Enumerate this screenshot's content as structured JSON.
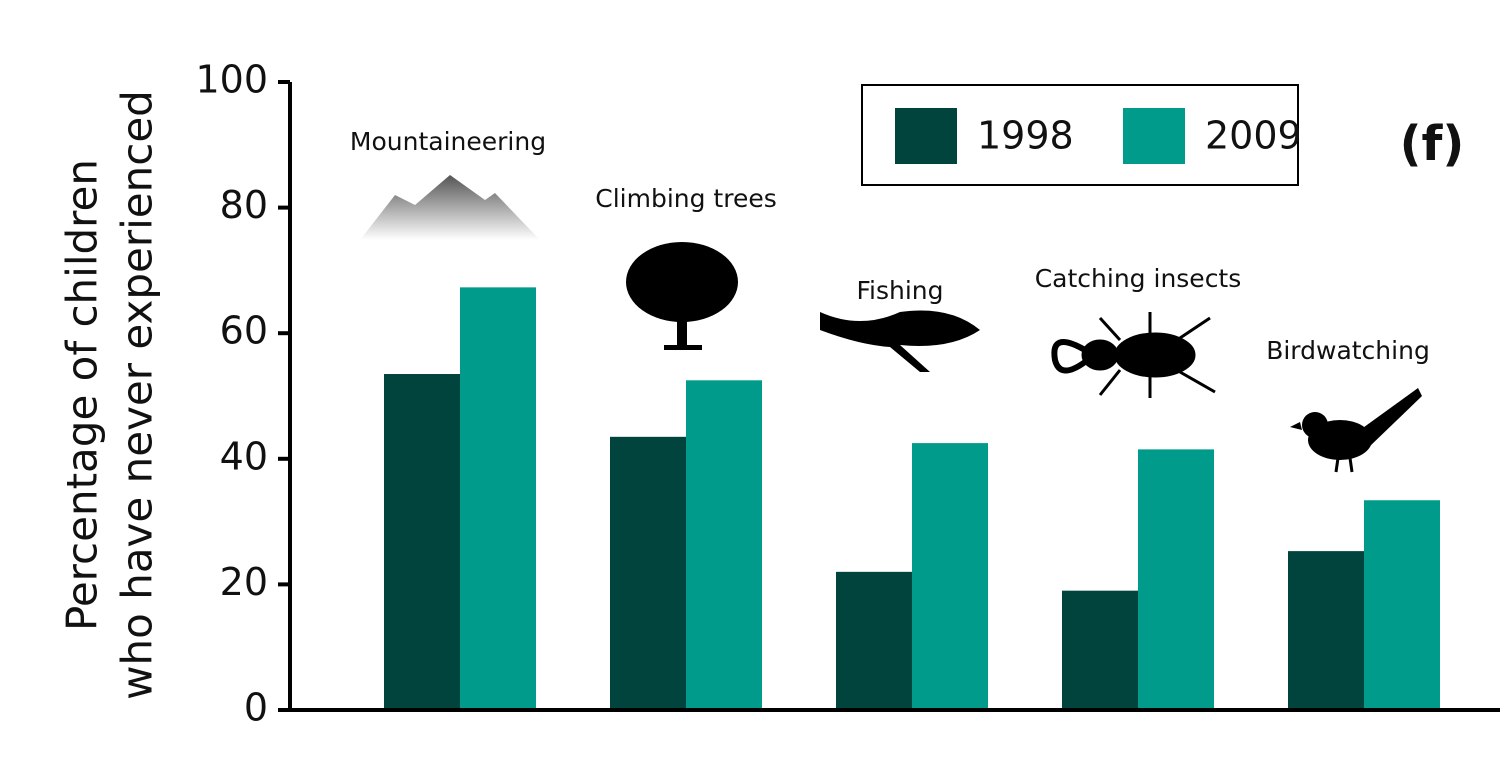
{
  "chart_data": {
    "type": "bar",
    "y_label": [
      "Percentage of children",
      "who have never experienced"
    ],
    "panel_label": "(f)",
    "categories": [
      "Mountaineering",
      "Climbing trees",
      "Fishing",
      "Catching insects",
      "Birdwatching"
    ],
    "series": [
      {
        "name": "1998",
        "color": "#01443d",
        "values": [
          53.5,
          43.5,
          22,
          19,
          25.3
        ]
      },
      {
        "name": "2009",
        "color": "#009b8a",
        "values": [
          67.3,
          52.5,
          42.5,
          41.5,
          33.4
        ]
      }
    ],
    "ylim": [
      0,
      100
    ],
    "yticks": [
      0,
      20,
      40,
      60,
      80,
      100
    ],
    "legend": "upper right"
  }
}
